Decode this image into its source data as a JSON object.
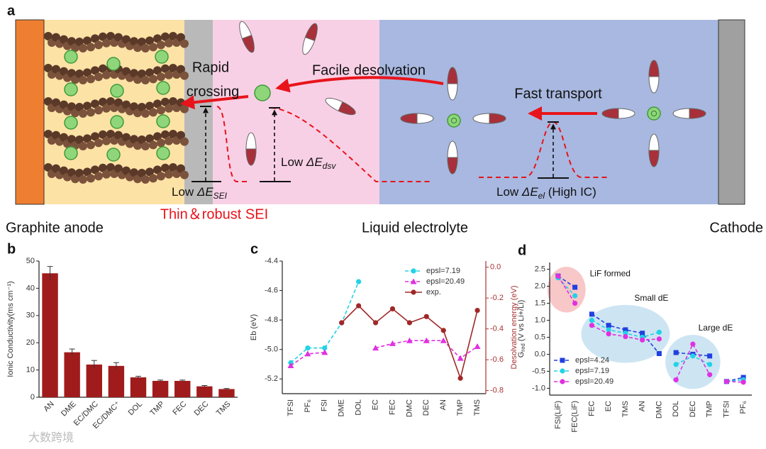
{
  "panel_a": {
    "label": "a",
    "rapid": "Rapid",
    "crossing": "crossing",
    "facile_desolvation": "Facile desolvation",
    "fast_transport": "Fast transport",
    "low_sei": {
      "text": "Low ",
      "delta": "ΔE",
      "sub": "SEI"
    },
    "low_dsv": {
      "text": "Low ",
      "delta": "ΔE",
      "sub": "dsv"
    },
    "low_el": {
      "text": "Low ",
      "delta": "ΔE",
      "sub": "el",
      "rest": " (High IC)"
    },
    "sei": "Thin＆robust SEI",
    "graphite_anode": "Graphite anode",
    "liquid_electrolyte": "Liquid electrolyte",
    "cathode": "Cathode"
  },
  "watermark": "大数跨境",
  "chart_data": [
    {
      "type": "bar",
      "panel": "b",
      "ylabel": "Ionic Conductivity(ms cm⁻¹)",
      "categories": [
        "AN",
        "DME",
        "EC/DMC",
        "EC/DMC⁺",
        "DOL",
        "TMP",
        "FEC",
        "DEC",
        "TMS"
      ],
      "values": [
        45.5,
        16.5,
        12,
        11.5,
        7.3,
        6,
        6,
        4,
        3
      ],
      "errors": [
        2.5,
        1.2,
        1.5,
        1.2,
        0.4,
        0.3,
        0.3,
        0.3,
        0.2
      ],
      "color": "#a01c1c",
      "xtick_rotation": 45,
      "ylim": [
        0,
        50
      ],
      "yticks": [
        0,
        10,
        20,
        30,
        40,
        50
      ]
    },
    {
      "type": "line",
      "panel": "c",
      "ylabel": "Eb (eV)",
      "y2label": "Desolvation energy (eV)",
      "y2color": "#a83232",
      "categories": [
        "TFSI",
        "PF₆",
        "FSI",
        "DME",
        "DOL",
        "EC",
        "FEC",
        "DMC",
        "DEC",
        "AN",
        "TMP",
        "TMS"
      ],
      "xtick_rotation": 90,
      "legend": "upper right",
      "ylim": [
        -5.3,
        -4.4
      ],
      "yticks": [
        -4.4,
        -4.6,
        -4.8,
        {
          "value": -5,
          "label": "-5.0"
        },
        -5.2
      ],
      "y2lim": [
        -0.82,
        0.04
      ],
      "y2ticks": [
        {
          "value": 0,
          "label": "0.0"
        },
        -0.2,
        -0.4,
        -0.6,
        -0.8
      ],
      "series": [
        {
          "name": "epsl=7.19",
          "color": "#22d3e6",
          "marker": "circle",
          "linestyle": "dashed",
          "axis": "y",
          "values": [
            -5.09,
            -4.99,
            -4.99,
            -4.82,
            -4.54,
            null,
            null,
            null,
            null,
            null,
            null,
            null
          ]
        },
        {
          "name": "epsl=20.49",
          "color": "#e030e0",
          "marker": "triangle",
          "linestyle": "dashed",
          "axis": "y",
          "values": [
            -5.11,
            -5.03,
            -5.02,
            null,
            null,
            -4.99,
            -4.96,
            -4.94,
            -4.94,
            -4.94,
            -5.06,
            -4.98
          ]
        },
        {
          "name": "exp.",
          "color": "#a02828",
          "marker": "circle",
          "linestyle": "solid",
          "axis": "y2",
          "values": [
            null,
            null,
            null,
            -0.36,
            -0.25,
            -0.36,
            -0.27,
            -0.36,
            -0.32,
            -0.41,
            -0.72,
            -0.28
          ]
        }
      ]
    },
    {
      "type": "line",
      "panel": "d",
      "ylabel": {
        "main": "G",
        "sub": "red",
        "rest": " (V vs Li+/Li)"
      },
      "categories": [
        "FSI(LiF)",
        "FEC(LiF)",
        "FEC",
        "EC",
        "TMS",
        "AN",
        "DMC",
        "DOL",
        "DEC",
        "TMP",
        "TFSI",
        "PF₆"
      ],
      "xtick_rotation": 90,
      "legend": "lower left",
      "ylim": [
        -1.2,
        2.7
      ],
      "yticks": [
        {
          "value": -1,
          "label": "-1.0"
        },
        -0.5,
        {
          "value": 0,
          "label": "0.0"
        },
        0.5,
        {
          "value": 1,
          "label": "1.0"
        },
        1.5,
        {
          "value": 2,
          "label": "2.0"
        },
        2.5
      ],
      "annotations": [
        {
          "text": "LiF formed",
          "span": [
            "FSI(LiF)",
            "FEC(LiF)"
          ],
          "color": "#f6b4b4",
          "position": "right"
        },
        {
          "text": "Small dE",
          "span": [
            "FEC",
            "DMC"
          ],
          "color": "#bcdcef",
          "position": "above"
        },
        {
          "text": "Large dE",
          "span": [
            "DOL",
            "TMP"
          ],
          "color": "#bcdcef",
          "position": "above"
        }
      ],
      "series": [
        {
          "name": "epsl=4.24",
          "color": "#2040e0",
          "marker": "square",
          "linestyle": "dashed",
          "values": [
            2.3,
            1.97,
            1.18,
            0.85,
            0.72,
            0.62,
            0.02,
            0.05,
            0.0,
            -0.05,
            -0.8,
            -0.68
          ]
        },
        {
          "name": "epsl=7.19",
          "color": "#22d3e6",
          "marker": "circle",
          "linestyle": "dashed",
          "values": [
            2.25,
            1.72,
            1.0,
            0.72,
            0.62,
            0.5,
            0.65,
            -0.3,
            -0.05,
            -0.3,
            -0.8,
            -0.75
          ]
        },
        {
          "name": "epsl=20.49",
          "color": "#e030e0",
          "marker": "circle",
          "linestyle": "dashed",
          "values": [
            2.3,
            1.5,
            0.85,
            0.6,
            0.52,
            0.42,
            0.45,
            -0.75,
            0.3,
            -0.6,
            -0.8,
            -0.82
          ]
        }
      ]
    }
  ]
}
